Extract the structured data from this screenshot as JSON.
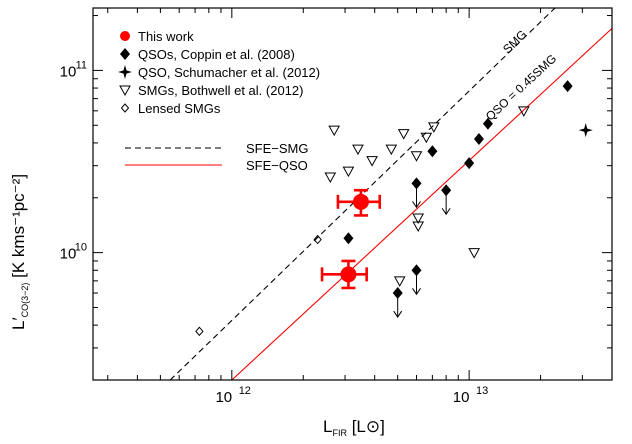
{
  "chart_data": {
    "type": "scatter",
    "xlabel": {
      "main": "L",
      "sub": "FIR",
      "unit": "[L⊙]"
    },
    "ylabel": {
      "main": "L′",
      "sub": "CO(3−2)",
      "unit": "[K kms⁻¹pc⁻²]"
    },
    "x_scale": "log",
    "y_scale": "log",
    "xlim": [
      260000000000.0,
      40000000000000.0
    ],
    "ylim": [
      2000000000.0,
      220000000000.0
    ],
    "x_ticks": [
      {
        "value": 1000000000000.0,
        "label": "10",
        "exp": "12"
      },
      {
        "value": 10000000000000.0,
        "label": "10",
        "exp": "13"
      }
    ],
    "y_ticks": [
      {
        "value": 10000000000.0,
        "label": "10",
        "exp": "10"
      },
      {
        "value": 100000000000.0,
        "label": "10",
        "exp": "11"
      }
    ],
    "legend": {
      "placement": "top-left",
      "entries": [
        {
          "label": "This work",
          "marker": "filled-circle",
          "color": "#ff0000"
        },
        {
          "label": "QSOs, Coppin et al. (2008)",
          "marker": "filled-diamond",
          "color": "#000000"
        },
        {
          "label": "QSO, Schumacher et al. (2012)",
          "marker": "filled-star",
          "color": "#000000"
        },
        {
          "label": "SMGs, Bothwell et al. (2012)",
          "marker": "open-triangle-down",
          "color": "#000000"
        },
        {
          "label": "Lensed SMGs",
          "marker": "open-diamond",
          "color": "#000000"
        }
      ],
      "lines": [
        {
          "label": "SFE−SMG",
          "style": "dashed",
          "color": "#000000"
        },
        {
          "label": "SFE−QSO",
          "style": "solid",
          "color": "#ff0000"
        }
      ]
    },
    "line_labels": [
      {
        "text": "SMG",
        "line": "SFE−SMG"
      },
      {
        "text": "QSO = 0.45SMG",
        "line": "SFE−QSO"
      }
    ],
    "lines": [
      {
        "name": "SFE−SMG",
        "style": "dashed",
        "color": "#000000",
        "points": [
          [
            550000000000.0,
            2000000000.0
          ],
          [
            23000000000000.0,
            220000000000.0
          ]
        ]
      },
      {
        "name": "SFE−QSO",
        "style": "solid",
        "color": "#ff0000",
        "points": [
          [
            1000000000000.0,
            2000000000.0
          ],
          [
            40000000000000.0,
            170000000000.0
          ]
        ]
      }
    ],
    "series": [
      {
        "name": "This work",
        "marker": "filled-circle",
        "color": "#ff0000",
        "points": [
          {
            "x": 3500000000000.0,
            "y": 19000000000.0,
            "xerr": [
              2800000000000.0,
              4200000000000.0
            ],
            "yerr": [
              16000000000.0,
              22000000000.0
            ]
          },
          {
            "x": 3100000000000.0,
            "y": 7600000000.0,
            "xerr": [
              2400000000000.0,
              3700000000000.0
            ],
            "yerr": [
              6400000000.0,
              9000000000.0
            ]
          }
        ]
      },
      {
        "name": "QSOs, Coppin et al. (2008)",
        "marker": "filled-diamond",
        "color": "#000000",
        "points": [
          {
            "x": 3100000000000.0,
            "y": 12000000000.0
          },
          {
            "x": 5000000000000.0,
            "y": 6000000000.0,
            "upper_limit": true
          },
          {
            "x": 6000000000000.0,
            "y": 8000000000.0,
            "upper_limit": true
          },
          {
            "x": 6000000000000.0,
            "y": 24000000000.0,
            "upper_limit": true
          },
          {
            "x": 7000000000000.0,
            "y": 36000000000.0
          },
          {
            "x": 8000000000000.0,
            "y": 22000000000.0,
            "upper_limit": true
          },
          {
            "x": 10000000000000.0,
            "y": 31000000000.0
          },
          {
            "x": 11000000000000.0,
            "y": 42000000000.0
          },
          {
            "x": 12000000000000.0,
            "y": 51000000000.0
          },
          {
            "x": 26000000000000.0,
            "y": 82000000000.0
          }
        ]
      },
      {
        "name": "QSO, Schumacher et al. (2012)",
        "marker": "filled-star",
        "color": "#000000",
        "points": [
          {
            "x": 31000000000000.0,
            "y": 47000000000.0
          }
        ]
      },
      {
        "name": "SMGs, Bothwell et al. (2012)",
        "marker": "open-triangle-down",
        "color": "#000000",
        "points": [
          {
            "x": 2700000000000.0,
            "y": 47000000000.0
          },
          {
            "x": 2600000000000.0,
            "y": 26000000000.0
          },
          {
            "x": 3100000000000.0,
            "y": 28000000000.0
          },
          {
            "x": 3400000000000.0,
            "y": 37000000000.0
          },
          {
            "x": 3900000000000.0,
            "y": 32000000000.0
          },
          {
            "x": 4700000000000.0,
            "y": 37000000000.0
          },
          {
            "x": 5300000000000.0,
            "y": 45000000000.0
          },
          {
            "x": 6000000000000.0,
            "y": 34000000000.0
          },
          {
            "x": 6600000000000.0,
            "y": 43000000000.0
          },
          {
            "x": 7100000000000.0,
            "y": 49000000000.0
          },
          {
            "x": 6100000000000.0,
            "y": 14000000000.0
          },
          {
            "x": 6100000000000.0,
            "y": 15500000000.0
          },
          {
            "x": 5100000000000.0,
            "y": 7000000000.0
          },
          {
            "x": 10500000000000.0,
            "y": 10000000000.0
          },
          {
            "x": 17000000000000.0,
            "y": 60000000000.0
          }
        ]
      },
      {
        "name": "Lensed SMGs",
        "marker": "open-diamond",
        "color": "#000000",
        "points": [
          {
            "x": 730000000000.0,
            "y": 3700000000.0
          },
          {
            "x": 2300000000000.0,
            "y": 11800000000.0
          }
        ]
      }
    ]
  }
}
